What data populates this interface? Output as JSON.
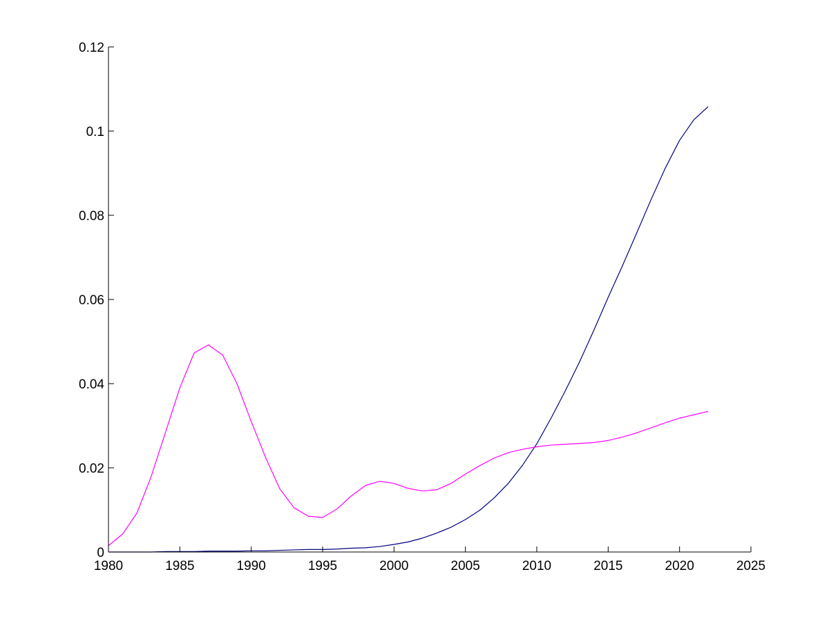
{
  "chart_data": {
    "type": "line",
    "title": "",
    "xlabel": "",
    "ylabel": "",
    "xlim": [
      1980,
      2025
    ],
    "ylim": [
      0,
      0.12
    ],
    "grid": false,
    "x_ticks": [
      "1980",
      "1985",
      "1990",
      "1995",
      "2000",
      "2005",
      "2010",
      "2015",
      "2020",
      "2025"
    ],
    "y_ticks": [
      "0",
      "0.02",
      "0.04",
      "0.06",
      "0.08",
      "0.1",
      "0.12"
    ],
    "x_tick_values": [
      1980,
      1985,
      1990,
      1995,
      2000,
      2005,
      2010,
      2015,
      2020,
      2025
    ],
    "y_tick_values": [
      0,
      0.02,
      0.04,
      0.06,
      0.08,
      0.1,
      0.12
    ],
    "x": [
      1980,
      1981,
      1982,
      1983,
      1984,
      1985,
      1986,
      1987,
      1988,
      1989,
      1990,
      1991,
      1992,
      1993,
      1994,
      1995,
      1996,
      1997,
      1998,
      1999,
      2000,
      2001,
      2002,
      2003,
      2004,
      2005,
      2006,
      2007,
      2008,
      2009,
      2010,
      2011,
      2012,
      2013,
      2014,
      2015,
      2016,
      2017,
      2018,
      2019,
      2020,
      2021,
      2022
    ],
    "series": [
      {
        "color": "#000080",
        "values": [
          0.0,
          0.0,
          0.0,
          0.0,
          0.0001,
          0.0001,
          0.0001,
          0.0002,
          0.0002,
          0.0002,
          0.0003,
          0.0003,
          0.0004,
          0.0005,
          0.0006,
          0.0006,
          0.0007,
          0.0009,
          0.001,
          0.0013,
          0.0018,
          0.0024,
          0.0033,
          0.0045,
          0.0059,
          0.0077,
          0.0099,
          0.0128,
          0.0163,
          0.0206,
          0.0257,
          0.0318,
          0.0383,
          0.0452,
          0.0527,
          0.0605,
          0.068,
          0.0758,
          0.0837,
          0.0912,
          0.0978,
          0.1027,
          0.1058
        ]
      },
      {
        "color": "#ff00ff",
        "values": [
          0.0015,
          0.0043,
          0.0093,
          0.018,
          0.0285,
          0.039,
          0.0473,
          0.0492,
          0.0468,
          0.04,
          0.031,
          0.0225,
          0.015,
          0.0105,
          0.0085,
          0.0082,
          0.0102,
          0.0133,
          0.0158,
          0.0168,
          0.0163,
          0.0151,
          0.0145,
          0.0148,
          0.0163,
          0.0185,
          0.0205,
          0.0223,
          0.0236,
          0.0244,
          0.025,
          0.0254,
          0.0256,
          0.0258,
          0.026,
          0.0265,
          0.0273,
          0.0283,
          0.0295,
          0.0307,
          0.0318,
          0.0326,
          0.0334
        ]
      }
    ]
  }
}
